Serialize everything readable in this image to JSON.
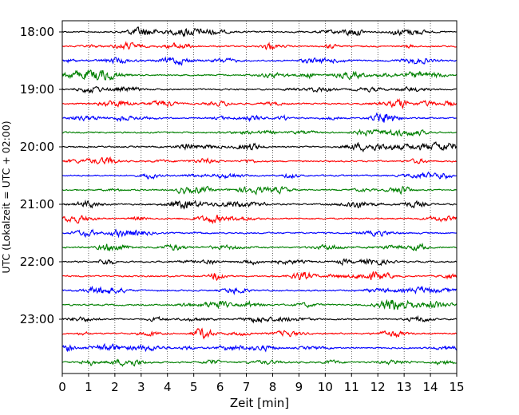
{
  "chart_data": {
    "type": "line",
    "xlabel": "Zeit  [min]",
    "ylabel": "UTC (Lokalzeit = UTC + 02:00)",
    "xlim": [
      0,
      15
    ],
    "x_ticks": [
      "0",
      "1",
      "2",
      "3",
      "4",
      "5",
      "6",
      "7",
      "8",
      "9",
      "10",
      "11",
      "12",
      "13",
      "14",
      "15"
    ],
    "y_ticks": [
      "18:00",
      "19:00",
      "20:00",
      "21:00",
      "22:00",
      "23:00"
    ],
    "trace_count": 24,
    "minutes_per_trace": 15,
    "trace_colors": [
      "#000000",
      "#ff0000",
      "#0000ff",
      "#008000"
    ],
    "grid": "vertical-dotted"
  }
}
